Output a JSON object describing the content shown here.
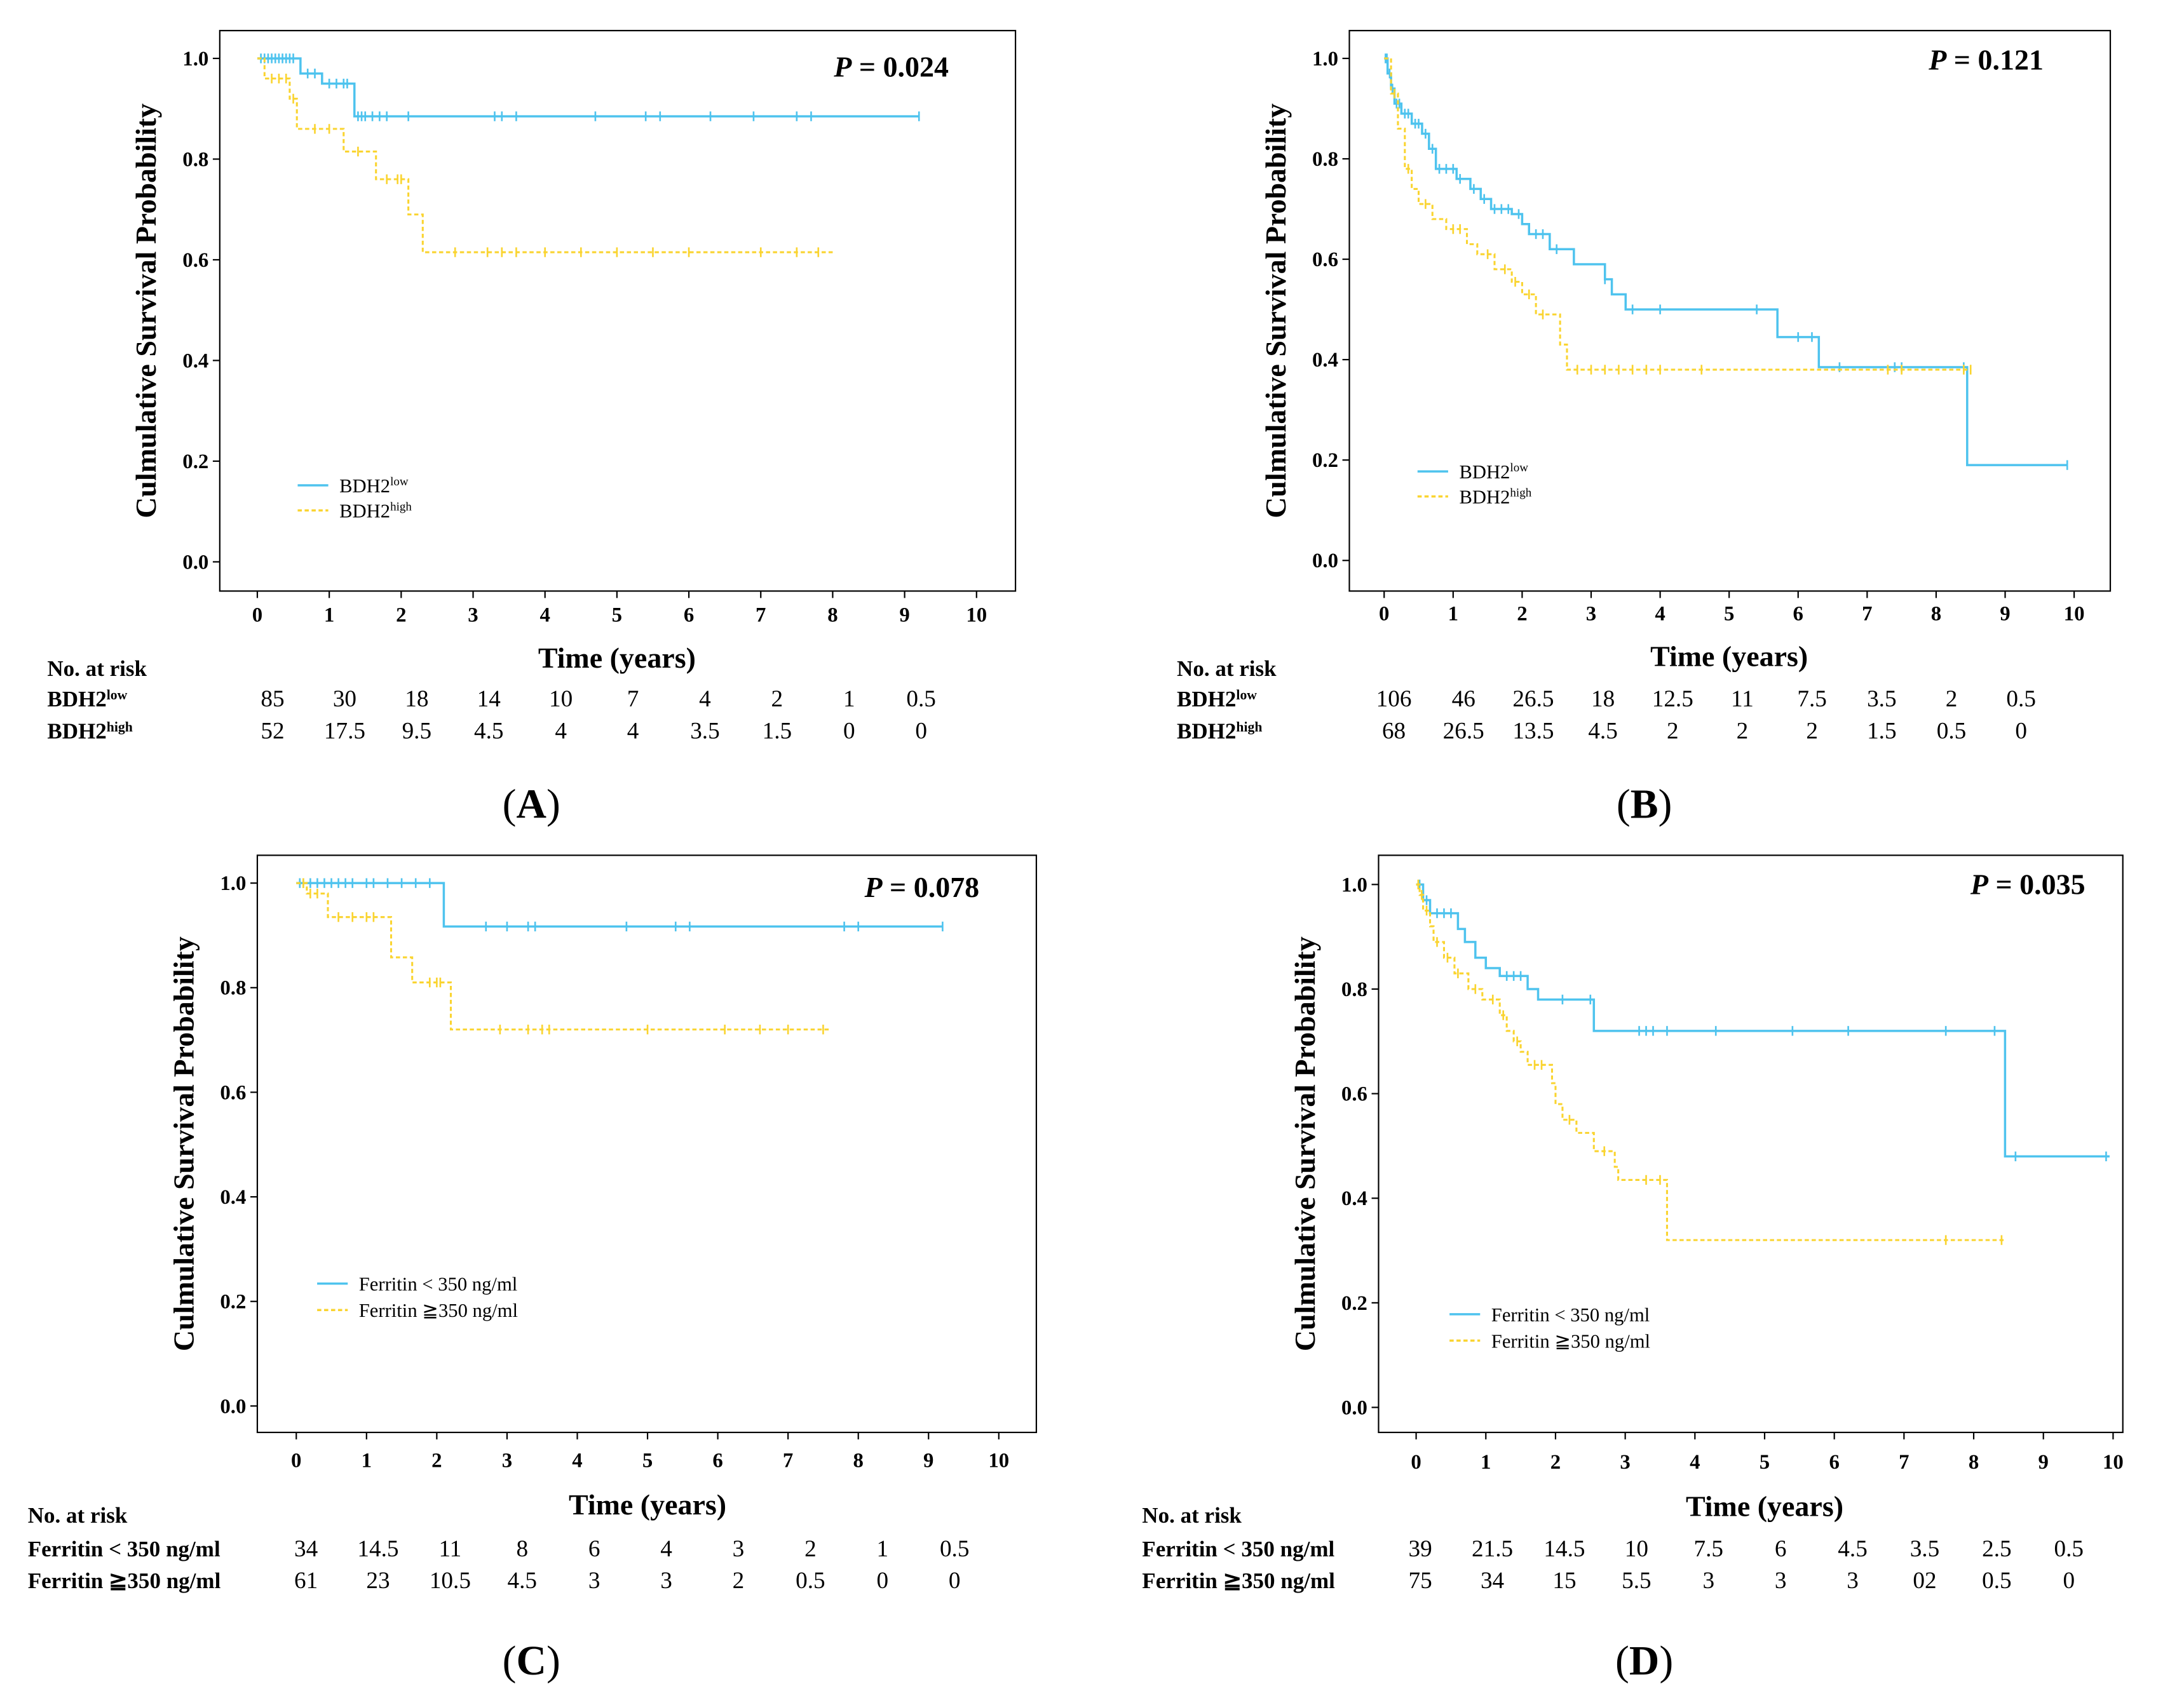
{
  "colors": {
    "low": "#4ec3ee",
    "high": "#fad430",
    "axis": "#000000"
  },
  "chart_data": [
    {
      "panel": "A",
      "type": "line",
      "ylabel": "Culmulative Survival Probability",
      "xlabel": "Time (years)",
      "p_value": "= 0.024",
      "xlim": [
        0,
        10
      ],
      "ylim": [
        0,
        1
      ],
      "xticks": [
        0,
        1,
        2,
        3,
        4,
        5,
        6,
        7,
        8,
        9,
        10
      ],
      "yticks": [
        0.0,
        0.2,
        0.4,
        0.6,
        0.8,
        1.0
      ],
      "legend": [
        {
          "base": "BDH2",
          "sup": "low"
        },
        {
          "base": "BDH2",
          "sup": "high"
        }
      ],
      "series": [
        {
          "name": "BDH2 low",
          "steps": [
            [
              0,
              1.0
            ],
            [
              0.6,
              0.97
            ],
            [
              0.9,
              0.95
            ],
            [
              1.35,
              0.885
            ],
            [
              9.2,
              0.885
            ]
          ],
          "censors": [
            0.05,
            0.1,
            0.15,
            0.2,
            0.25,
            0.3,
            0.35,
            0.4,
            0.45,
            0.5,
            0.7,
            0.8,
            1.0,
            1.1,
            1.2,
            1.25,
            1.4,
            1.45,
            1.5,
            1.6,
            1.7,
            1.8,
            2.1,
            3.3,
            3.4,
            3.6,
            4.7,
            5.4,
            5.6,
            6.3,
            6.9,
            7.5,
            7.7,
            9.2
          ]
        },
        {
          "name": "BDH2 high",
          "steps": [
            [
              0,
              1.0
            ],
            [
              0.1,
              0.96
            ],
            [
              0.45,
              0.92
            ],
            [
              0.55,
              0.86
            ],
            [
              1.2,
              0.815
            ],
            [
              1.65,
              0.76
            ],
            [
              2.1,
              0.69
            ],
            [
              2.3,
              0.615
            ],
            [
              8.0,
              0.615
            ]
          ],
          "censors": [
            0.2,
            0.3,
            0.4,
            0.5,
            0.8,
            1.0,
            1.4,
            1.8,
            1.95,
            2.0,
            2.75,
            3.2,
            3.4,
            3.6,
            4.0,
            4.5,
            5.0,
            5.5,
            6.0,
            7.0,
            7.5,
            7.8
          ]
        }
      ],
      "risk_table": {
        "title": "No. at risk",
        "rows": [
          {
            "base": "BDH2",
            "sup": "low",
            "values": [
              "85",
              "30",
              "18",
              "14",
              "10",
              "7",
              "4",
              "2",
              "1",
              "0.5"
            ]
          },
          {
            "base": "BDH2",
            "sup": "high",
            "values": [
              "52",
              "17.5",
              "9.5",
              "4.5",
              "4",
              "4",
              "3.5",
              "1.5",
              "0",
              "0"
            ]
          }
        ]
      }
    },
    {
      "panel": "B",
      "type": "line",
      "ylabel": "Culmulative Survival Probability",
      "xlabel": "Time (years)",
      "p_value": "= 0.121",
      "xlim": [
        0,
        10
      ],
      "ylim": [
        0,
        1
      ],
      "xticks": [
        0,
        1,
        2,
        3,
        4,
        5,
        6,
        7,
        8,
        9,
        10
      ],
      "yticks": [
        0.0,
        0.2,
        0.4,
        0.6,
        0.8,
        1.0
      ],
      "legend": [
        {
          "base": "BDH2",
          "sup": "low"
        },
        {
          "base": "BDH2",
          "sup": "high"
        }
      ],
      "series": [
        {
          "name": "BDH2 low",
          "steps": [
            [
              0,
              1.0
            ],
            [
              0.05,
              0.97
            ],
            [
              0.1,
              0.94
            ],
            [
              0.15,
              0.91
            ],
            [
              0.25,
              0.89
            ],
            [
              0.4,
              0.87
            ],
            [
              0.55,
              0.85
            ],
            [
              0.65,
              0.82
            ],
            [
              0.75,
              0.78
            ],
            [
              1.05,
              0.76
            ],
            [
              1.25,
              0.74
            ],
            [
              1.4,
              0.72
            ],
            [
              1.55,
              0.7
            ],
            [
              1.85,
              0.69
            ],
            [
              2.0,
              0.67
            ],
            [
              2.1,
              0.65
            ],
            [
              2.4,
              0.62
            ],
            [
              2.75,
              0.59
            ],
            [
              3.2,
              0.56
            ],
            [
              3.3,
              0.53
            ],
            [
              3.5,
              0.5
            ],
            [
              5.7,
              0.445
            ],
            [
              6.3,
              0.385
            ],
            [
              8.45,
              0.19
            ],
            [
              9.9,
              0.19
            ]
          ],
          "censors": [
            0.02,
            0.04,
            0.08,
            0.12,
            0.18,
            0.22,
            0.3,
            0.35,
            0.45,
            0.5,
            0.6,
            0.7,
            0.8,
            0.9,
            1.0,
            1.1,
            1.3,
            1.45,
            1.6,
            1.7,
            1.8,
            1.95,
            2.2,
            2.3,
            2.5,
            3.2,
            3.6,
            4.0,
            5.4,
            6.0,
            6.2,
            6.6,
            7.4,
            7.5,
            8.4,
            9.9
          ]
        },
        {
          "name": "BDH2 high",
          "steps": [
            [
              0,
              1.0
            ],
            [
              0.1,
              0.93
            ],
            [
              0.2,
              0.86
            ],
            [
              0.3,
              0.78
            ],
            [
              0.4,
              0.74
            ],
            [
              0.5,
              0.71
            ],
            [
              0.7,
              0.68
            ],
            [
              0.9,
              0.66
            ],
            [
              1.2,
              0.63
            ],
            [
              1.35,
              0.61
            ],
            [
              1.6,
              0.58
            ],
            [
              1.85,
              0.555
            ],
            [
              2.0,
              0.53
            ],
            [
              2.2,
              0.49
            ],
            [
              2.55,
              0.43
            ],
            [
              2.65,
              0.38
            ],
            [
              8.5,
              0.38
            ]
          ],
          "censors": [
            0.15,
            0.35,
            0.6,
            1.0,
            1.1,
            1.5,
            1.75,
            1.9,
            2.1,
            2.3,
            2.8,
            3.0,
            3.2,
            3.4,
            3.6,
            3.8,
            4.0,
            4.6,
            7.3,
            7.5,
            8.4,
            8.5
          ]
        }
      ],
      "risk_table": {
        "title": "No. at risk",
        "rows": [
          {
            "base": "BDH2",
            "sup": "low",
            "values": [
              "106",
              "46",
              "26.5",
              "18",
              "12.5",
              "11",
              "7.5",
              "3.5",
              "2",
              "0.5"
            ]
          },
          {
            "base": "BDH2",
            "sup": "high",
            "values": [
              "68",
              "26.5",
              "13.5",
              "4.5",
              "2",
              "2",
              "2",
              "1.5",
              "0.5",
              "0"
            ]
          }
        ]
      }
    },
    {
      "panel": "C",
      "type": "line",
      "ylabel": "Culmulative Survival Probability",
      "xlabel": "Time (years)",
      "p_value": "= 0.078",
      "xlim": [
        0,
        10
      ],
      "ylim": [
        0,
        1
      ],
      "xticks": [
        0,
        1,
        2,
        3,
        4,
        5,
        6,
        7,
        8,
        9,
        10
      ],
      "yticks": [
        0.0,
        0.2,
        0.4,
        0.6,
        0.8,
        1.0
      ],
      "legend": [
        {
          "base": "Ferritin < 350 ng/ml",
          "sup": ""
        },
        {
          "base": "Ferritin ≧350 ng/ml",
          "sup": ""
        }
      ],
      "series": [
        {
          "name": "Ferritin < 350 ng/ml",
          "steps": [
            [
              0,
              1.0
            ],
            [
              2.1,
              0.917
            ],
            [
              9.2,
              0.917
            ]
          ],
          "censors": [
            0.05,
            0.1,
            0.2,
            0.3,
            0.4,
            0.5,
            0.6,
            0.7,
            0.8,
            1.0,
            1.1,
            1.3,
            1.5,
            1.7,
            1.9,
            2.7,
            3.0,
            3.3,
            3.4,
            4.7,
            5.4,
            5.6,
            7.8,
            8.0,
            9.2
          ]
        },
        {
          "name": "Ferritin ≧350 ng/ml",
          "steps": [
            [
              0,
              1.0
            ],
            [
              0.15,
              0.98
            ],
            [
              0.45,
              0.935
            ],
            [
              1.35,
              0.858
            ],
            [
              1.65,
              0.81
            ],
            [
              2.2,
              0.72
            ],
            [
              7.6,
              0.72
            ]
          ],
          "censors": [
            0.1,
            0.2,
            0.3,
            0.6,
            0.8,
            1.0,
            1.1,
            1.9,
            2.0,
            2.05,
            2.9,
            3.3,
            3.5,
            3.6,
            5.0,
            6.1,
            6.6,
            7.0,
            7.5
          ]
        }
      ],
      "risk_table": {
        "title": "No. at risk",
        "rows": [
          {
            "base": "Ferritin < 350 ng/ml",
            "sup": "",
            "values": [
              "34",
              "14.5",
              "11",
              "8",
              "6",
              "4",
              "3",
              "2",
              "1",
              "0.5"
            ]
          },
          {
            "base": "Ferritin ≧350 ng/ml",
            "sup": "",
            "values": [
              "61",
              "23",
              "10.5",
              "4.5",
              "3",
              "3",
              "2",
              "0.5",
              "0",
              "0"
            ]
          }
        ]
      }
    },
    {
      "panel": "D",
      "type": "line",
      "ylabel": "Culmulative Survival Probability",
      "xlabel": "Time (years)",
      "p_value": "= 0.035",
      "xlim": [
        0,
        10
      ],
      "ylim": [
        0,
        1
      ],
      "xticks": [
        0,
        1,
        2,
        3,
        4,
        5,
        6,
        7,
        8,
        9,
        10
      ],
      "yticks": [
        0.0,
        0.2,
        0.4,
        0.6,
        0.8,
        1.0
      ],
      "legend": [
        {
          "base": "Ferritin < 350 ng/ml",
          "sup": ""
        },
        {
          "base": "Ferritin ≧350 ng/ml",
          "sup": ""
        }
      ],
      "series": [
        {
          "name": "Ferritin < 350 ng/ml",
          "steps": [
            [
              0,
              1.0
            ],
            [
              0.1,
              0.97
            ],
            [
              0.2,
              0.945
            ],
            [
              0.6,
              0.915
            ],
            [
              0.7,
              0.89
            ],
            [
              0.85,
              0.86
            ],
            [
              1.0,
              0.84
            ],
            [
              1.2,
              0.825
            ],
            [
              1.6,
              0.8
            ],
            [
              1.75,
              0.78
            ],
            [
              2.55,
              0.72
            ],
            [
              8.45,
              0.48
            ],
            [
              9.95,
              0.48
            ]
          ],
          "censors": [
            0.05,
            0.15,
            0.3,
            0.4,
            0.5,
            1.3,
            1.4,
            1.5,
            2.1,
            2.5,
            3.2,
            3.3,
            3.4,
            3.6,
            4.3,
            5.4,
            6.2,
            7.6,
            8.3,
            8.6,
            9.9
          ]
        },
        {
          "name": "Ferritin ≧350 ng/ml",
          "steps": [
            [
              0,
              1.0
            ],
            [
              0.05,
              0.98
            ],
            [
              0.1,
              0.95
            ],
            [
              0.2,
              0.92
            ],
            [
              0.25,
              0.89
            ],
            [
              0.4,
              0.86
            ],
            [
              0.55,
              0.83
            ],
            [
              0.75,
              0.8
            ],
            [
              0.95,
              0.78
            ],
            [
              1.2,
              0.75
            ],
            [
              1.3,
              0.72
            ],
            [
              1.4,
              0.7
            ],
            [
              1.5,
              0.68
            ],
            [
              1.6,
              0.655
            ],
            [
              1.95,
              0.62
            ],
            [
              2.0,
              0.58
            ],
            [
              2.1,
              0.55
            ],
            [
              2.3,
              0.525
            ],
            [
              2.55,
              0.49
            ],
            [
              2.85,
              0.46
            ],
            [
              2.9,
              0.435
            ],
            [
              3.6,
              0.32
            ],
            [
              8.45,
              0.32
            ]
          ],
          "censors": [
            0.03,
            0.08,
            0.15,
            0.3,
            0.45,
            0.6,
            0.85,
            1.1,
            1.25,
            1.45,
            1.7,
            1.8,
            2.2,
            2.7,
            3.3,
            3.5,
            7.6,
            8.4
          ]
        }
      ],
      "risk_table": {
        "title": "No. at risk",
        "rows": [
          {
            "base": "Ferritin < 350 ng/ml",
            "sup": "",
            "values": [
              "39",
              "21.5",
              "14.5",
              "10",
              "7.5",
              "6",
              "4.5",
              "3.5",
              "2.5",
              "0.5"
            ]
          },
          {
            "base": "Ferritin ≧350 ng/ml",
            "sup": "",
            "values": [
              "75",
              "34",
              "15",
              "5.5",
              "3",
              "3",
              "3",
              "02",
              "0.5",
              "0"
            ]
          }
        ]
      }
    }
  ]
}
